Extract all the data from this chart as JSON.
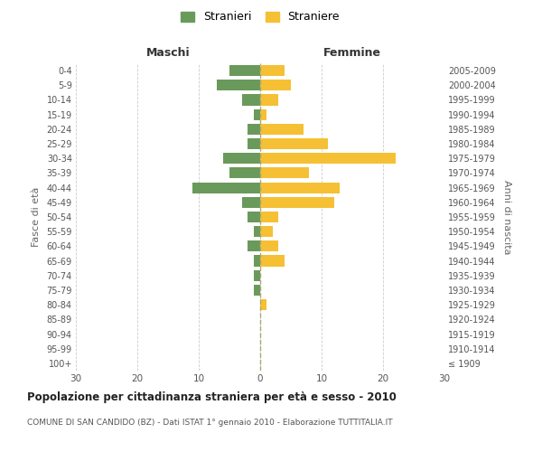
{
  "age_groups": [
    "100+",
    "95-99",
    "90-94",
    "85-89",
    "80-84",
    "75-79",
    "70-74",
    "65-69",
    "60-64",
    "55-59",
    "50-54",
    "45-49",
    "40-44",
    "35-39",
    "30-34",
    "25-29",
    "20-24",
    "15-19",
    "10-14",
    "5-9",
    "0-4"
  ],
  "birth_years": [
    "≤ 1909",
    "1910-1914",
    "1915-1919",
    "1920-1924",
    "1925-1929",
    "1930-1934",
    "1935-1939",
    "1940-1944",
    "1945-1949",
    "1950-1954",
    "1955-1959",
    "1960-1964",
    "1965-1969",
    "1970-1974",
    "1975-1979",
    "1980-1984",
    "1985-1989",
    "1990-1994",
    "1995-1999",
    "2000-2004",
    "2005-2009"
  ],
  "maschi": [
    0,
    0,
    0,
    0,
    0,
    1,
    1,
    1,
    2,
    1,
    2,
    3,
    11,
    5,
    6,
    2,
    2,
    1,
    3,
    7,
    5
  ],
  "femmine": [
    0,
    0,
    0,
    0,
    1,
    0,
    0,
    4,
    3,
    2,
    3,
    12,
    13,
    8,
    22,
    11,
    7,
    1,
    3,
    5,
    4
  ],
  "color_maschi": "#6a9a5b",
  "color_femmine": "#f5c034",
  "title": "Popolazione per cittadinanza straniera per età e sesso - 2010",
  "subtitle": "COMUNE DI SAN CANDIDO (BZ) - Dati ISTAT 1° gennaio 2010 - Elaborazione TUTTITALIA.IT",
  "ylabel_left": "Fasce di età",
  "ylabel_right": "Anni di nascita",
  "xlabel_maschi": "Maschi",
  "xlabel_femmine": "Femmine",
  "legend_maschi": "Stranieri",
  "legend_femmine": "Straniere",
  "xlim": 30,
  "background_color": "#ffffff",
  "grid_color": "#cccccc"
}
